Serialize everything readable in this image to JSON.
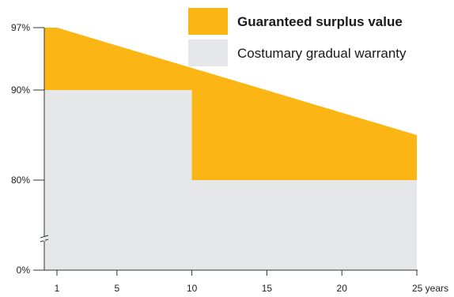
{
  "chart_data": {
    "type": "area",
    "x_tick_labels": [
      "1",
      "5",
      "10",
      "15",
      "20",
      "25 years"
    ],
    "x_ticks": [
      1,
      5,
      10,
      15,
      20,
      25
    ],
    "y_tick_labels": [
      "0%",
      "80%",
      "90%",
      "97%"
    ],
    "y_ticks": [
      0,
      80,
      90,
      97
    ],
    "y_axis_break": true,
    "series": [
      {
        "name": "Guaranteed surplus value",
        "color": "#FBB514",
        "x": [
          0.2,
          1,
          25
        ],
        "values": [
          97,
          97,
          85
        ]
      },
      {
        "name": "Costumary gradual warranty",
        "color": "#E6E7E8",
        "x": [
          0.2,
          10,
          10,
          25
        ],
        "values": [
          90,
          90,
          80,
          80
        ]
      }
    ],
    "legend_position": "top-right",
    "grid": false
  }
}
